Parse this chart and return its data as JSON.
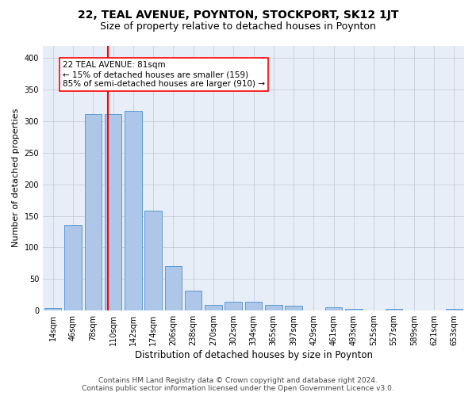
{
  "title": "22, TEAL AVENUE, POYNTON, STOCKPORT, SK12 1JT",
  "subtitle": "Size of property relative to detached houses in Poynton",
  "xlabel": "Distribution of detached houses by size in Poynton",
  "ylabel": "Number of detached properties",
  "bin_labels": [
    "14sqm",
    "46sqm",
    "78sqm",
    "110sqm",
    "142sqm",
    "174sqm",
    "206sqm",
    "238sqm",
    "270sqm",
    "302sqm",
    "334sqm",
    "365sqm",
    "397sqm",
    "429sqm",
    "461sqm",
    "493sqm",
    "525sqm",
    "557sqm",
    "589sqm",
    "621sqm",
    "653sqm"
  ],
  "bar_heights": [
    4,
    136,
    311,
    312,
    317,
    158,
    71,
    31,
    9,
    14,
    14,
    9,
    8,
    0,
    5,
    3,
    0,
    2,
    0,
    0,
    2
  ],
  "bar_color": "#aec6e8",
  "bar_edgecolor": "#5b9bd5",
  "redline_index": 2.75,
  "ylim": [
    0,
    420
  ],
  "annotation_text": "22 TEAL AVENUE: 81sqm\n← 15% of detached houses are smaller (159)\n85% of semi-detached houses are larger (910) →",
  "annotation_box_color": "white",
  "annotation_box_edgecolor": "red",
  "redline_color": "red",
  "footer_line1": "Contains HM Land Registry data © Crown copyright and database right 2024.",
  "footer_line2": "Contains public sector information licensed under the Open Government Licence v3.0.",
  "background_color": "#e8eef7",
  "plot_background": "white",
  "grid_color": "#c0c8d8",
  "title_fontsize": 10,
  "subtitle_fontsize": 9,
  "ylabel_fontsize": 8,
  "xlabel_fontsize": 8.5,
  "tick_fontsize": 7,
  "annotation_fontsize": 7.5,
  "footer_fontsize": 6.5
}
